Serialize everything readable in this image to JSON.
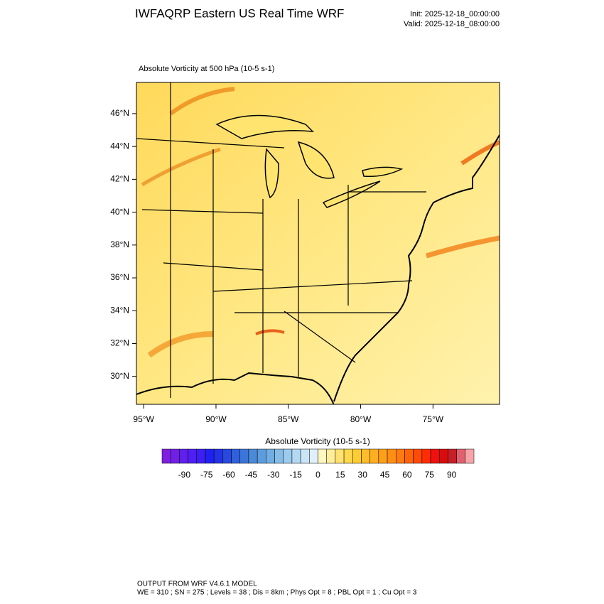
{
  "header": {
    "title": "IWFAQRP Eastern US Real Time WRF",
    "init": "Init: 2025-12-18_00:00:00",
    "valid": "Valid: 2025-12-18_08:00:00"
  },
  "map": {
    "subtitle": "Absolute Vorticity at 500 hPa   (10-5 s-1)",
    "latlim": [
      28.3,
      47.9
    ],
    "lonlim": [
      -95.5,
      -70.4
    ],
    "lat_ticks": [
      {
        "value": 30,
        "label": "30°N"
      },
      {
        "value": 32,
        "label": "32°N"
      },
      {
        "value": 34,
        "label": "34°N"
      },
      {
        "value": 36,
        "label": "36°N"
      },
      {
        "value": 38,
        "label": "38°N"
      },
      {
        "value": 40,
        "label": "40°N"
      },
      {
        "value": 42,
        "label": "42°N"
      },
      {
        "value": 44,
        "label": "44°N"
      },
      {
        "value": 46,
        "label": "46°N"
      }
    ],
    "lon_ticks": [
      {
        "value": -95,
        "label": "95°W"
      },
      {
        "value": -90,
        "label": "90°W"
      },
      {
        "value": -85,
        "label": "85°W"
      },
      {
        "value": -80,
        "label": "80°W"
      },
      {
        "value": -75,
        "label": "75°W"
      }
    ]
  },
  "colorbar": {
    "title": "Absolute Vorticity  (10-5 s-1)",
    "lim": [
      -105,
      105
    ],
    "ticks": [
      -90,
      -75,
      -60,
      -45,
      -30,
      -15,
      0,
      15,
      30,
      45,
      60,
      75,
      90
    ],
    "colors": [
      "#7f1fe0",
      "#701fe6",
      "#601fec",
      "#4f1ff2",
      "#3d1ff6",
      "#2020f0",
      "#2233e6",
      "#2848e0",
      "#3060dc",
      "#3a75da",
      "#4a8ad8",
      "#5c9cdc",
      "#70ade2",
      "#86bde8",
      "#9ccbee",
      "#b3d9f2",
      "#c9e5f6",
      "#dff0fa",
      "#fff6c0",
      "#ffee99",
      "#ffe270",
      "#ffd84c",
      "#ffcc33",
      "#ffbd2a",
      "#ffae22",
      "#ff9f1a",
      "#ff8f14",
      "#ff7a10",
      "#ff630c",
      "#ff4a08",
      "#ff2c04",
      "#f01010",
      "#d80c0c",
      "#c81e28",
      "#e06070",
      "#f6a4a8"
    ]
  },
  "footer": {
    "line1": "OUTPUT FROM WRF V4.6.1 MODEL",
    "line2": "WE = 310 ; SN = 275 ; Levels = 38 ; Dis = 8km ; Phys Opt = 8 ; PBL Opt = 1 ; Cu Opt = 3"
  }
}
